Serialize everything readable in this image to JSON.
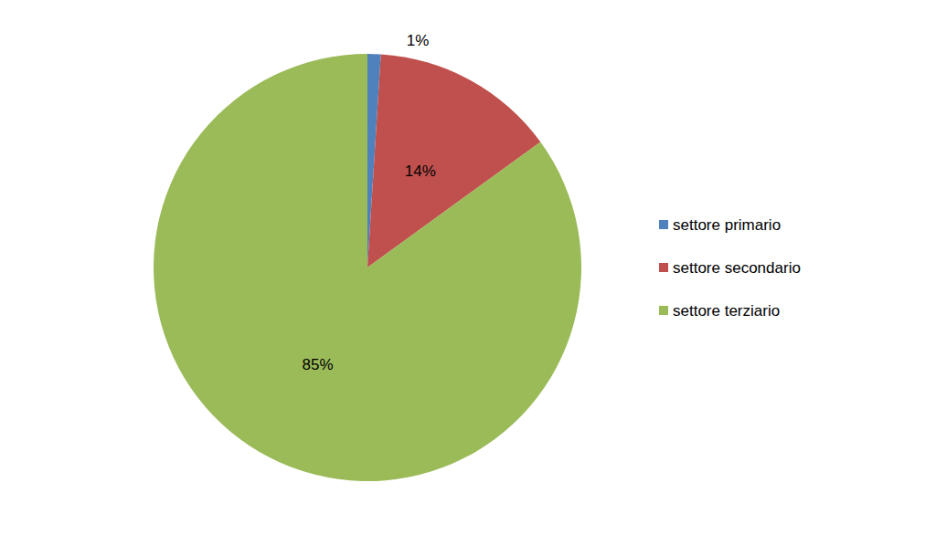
{
  "chart_data": {
    "type": "pie",
    "categories": [
      "settore primario",
      "settore secondario",
      "settore terziario"
    ],
    "values": [
      1,
      14,
      85
    ],
    "value_labels": [
      "1%",
      "14%",
      "85%"
    ],
    "colors": [
      "#4f81bd",
      "#c0504d",
      "#9bbb59"
    ],
    "data_labels": true,
    "legend": "right"
  }
}
